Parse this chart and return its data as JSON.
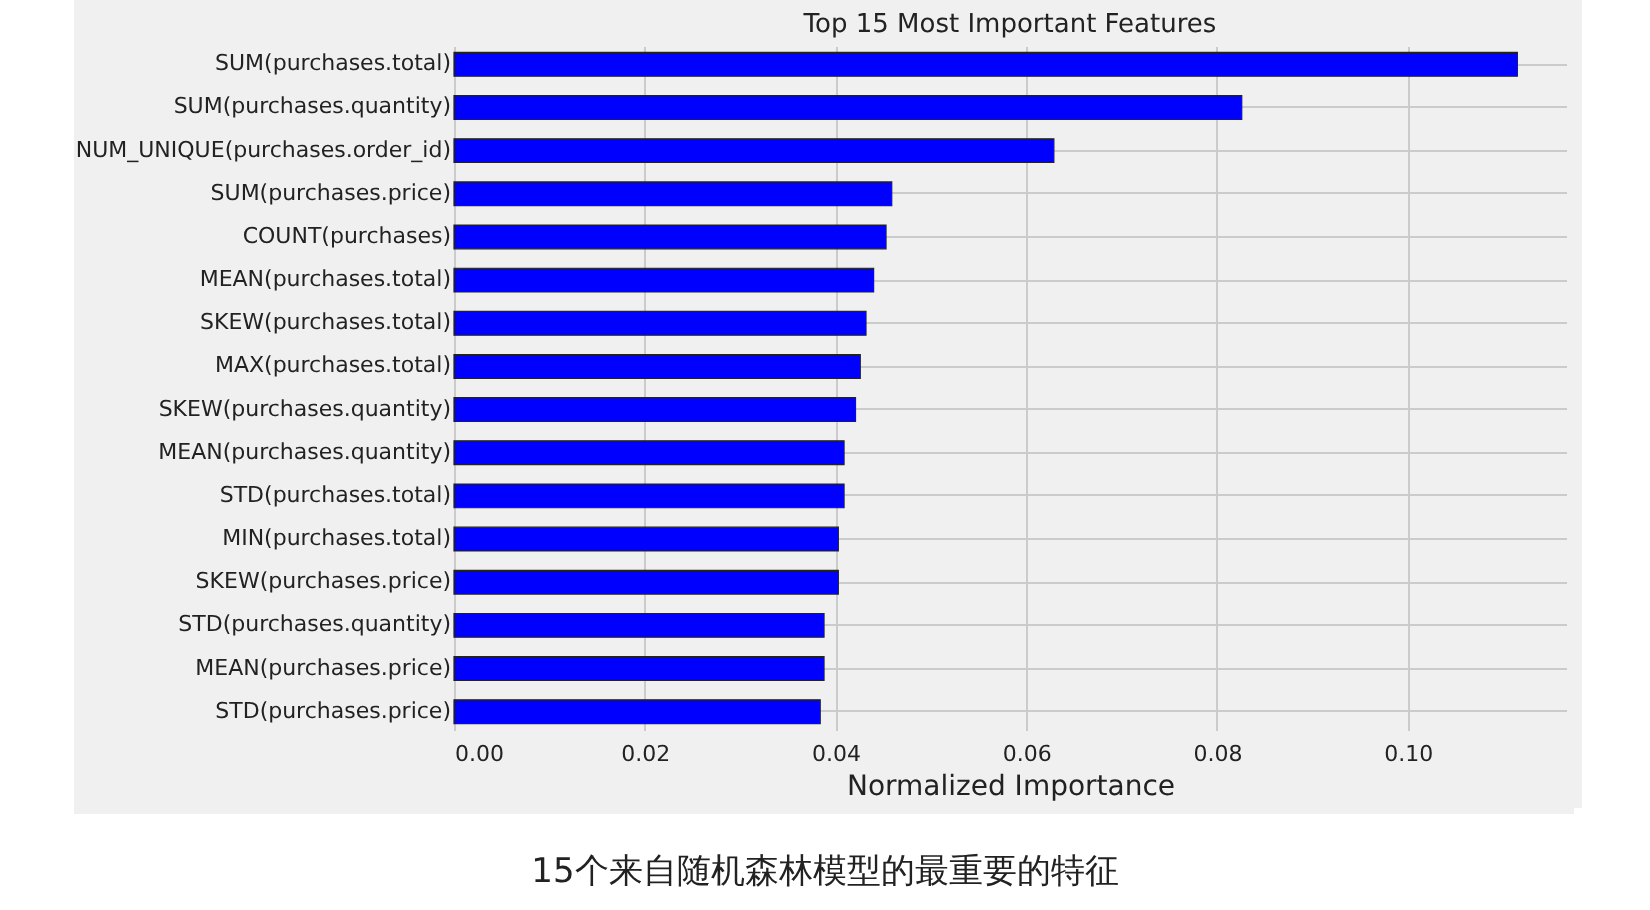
{
  "chart_data": {
    "type": "bar",
    "orientation": "horizontal",
    "title": "Top 15 Most Important Features",
    "xlabel": "Normalized Importance",
    "categories": [
      "SUM(purchases.total)",
      "SUM(purchases.quantity)",
      "NUM_UNIQUE(purchases.order_id)",
      "SUM(purchases.price)",
      "COUNT(purchases)",
      "MEAN(purchases.total)",
      "SKEW(purchases.total)",
      "MAX(purchases.total)",
      "SKEW(purchases.quantity)",
      "MEAN(purchases.quantity)",
      "STD(purchases.total)",
      "MIN(purchases.total)",
      "SKEW(purchases.price)",
      "STD(purchases.quantity)",
      "MEAN(purchases.price)",
      "STD(purchases.price)"
    ],
    "values": [
      0.1115,
      0.0826,
      0.0629,
      0.0459,
      0.0453,
      0.044,
      0.0432,
      0.0426,
      0.0421,
      0.0409,
      0.0409,
      0.0403,
      0.0403,
      0.0388,
      0.0388,
      0.0384
    ],
    "color": "#0000ff",
    "xlim": [
      0,
      0.1166
    ],
    "xticks": [
      {
        "value": 0,
        "label": "0.00"
      },
      {
        "value": 0.02,
        "label": "0.02"
      },
      {
        "value": 0.04,
        "label": "0.04"
      },
      {
        "value": 0.06,
        "label": "0.06"
      },
      {
        "value": 0.08,
        "label": "0.08"
      },
      {
        "value": 0.1,
        "label": "0.10"
      }
    ],
    "grid": true,
    "annotations": [
      "15个来自随机森林模型的最重要的特征"
    ]
  }
}
